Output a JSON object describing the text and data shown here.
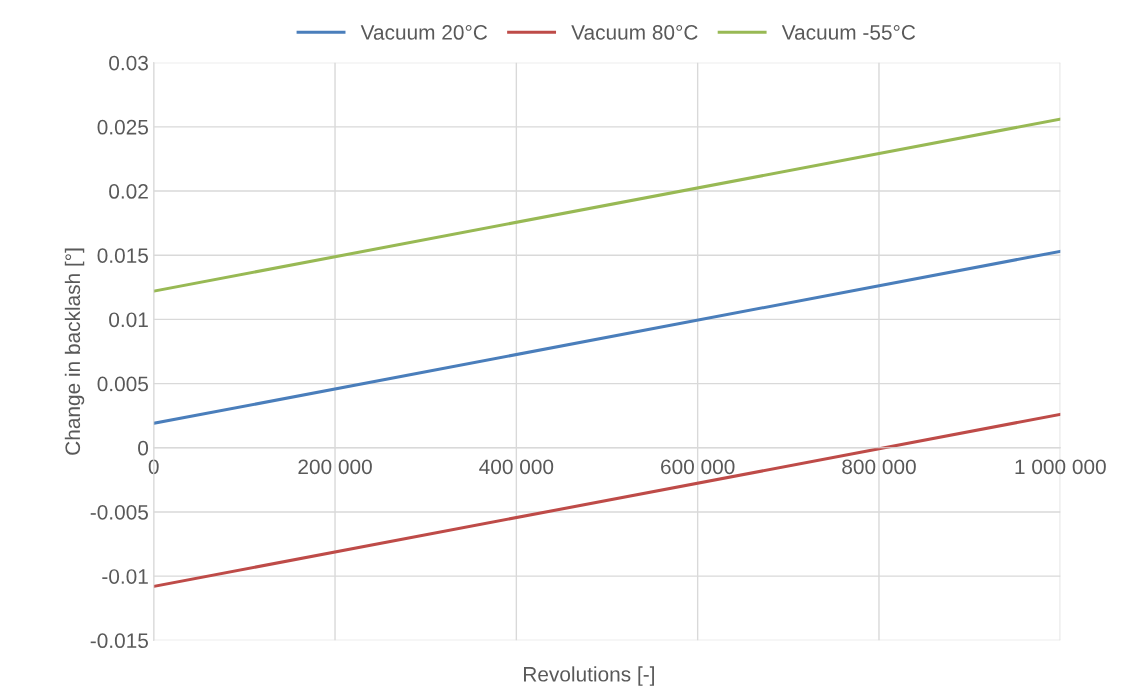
{
  "chart_data": {
    "type": "line",
    "xlabel": "Revolutions [-]",
    "ylabel": "Change in backlash [°]",
    "x": [
      0,
      1000000
    ],
    "series": [
      {
        "name": "Vacuum 20°C",
        "color": "#4a7ebb",
        "values": [
          0.0019,
          0.0153
        ]
      },
      {
        "name": "Vacuum 80°C",
        "color": "#be4b48",
        "values": [
          -0.0108,
          0.0026
        ]
      },
      {
        "name": "Vacuum -55°C",
        "color": "#98b954",
        "values": [
          0.0122,
          0.0256
        ]
      }
    ],
    "xlim": [
      0,
      1000000
    ],
    "xticks": [
      0,
      {
        "value": 200000,
        "label": "200 000"
      },
      {
        "value": 400000,
        "label": "400 000"
      },
      {
        "value": 600000,
        "label": "600 000"
      },
      {
        "value": 800000,
        "label": "800 000"
      },
      {
        "value": 1000000,
        "label": "1 000 000"
      }
    ],
    "ylim": [
      -0.015,
      0.03
    ],
    "yticks": [
      -0.015,
      -0.01,
      -0.005,
      0,
      0.005,
      0.01,
      0.015,
      0.02,
      0.025,
      0.03
    ],
    "grid": true,
    "legend": "top",
    "marker": "none",
    "line_style": "solid"
  }
}
